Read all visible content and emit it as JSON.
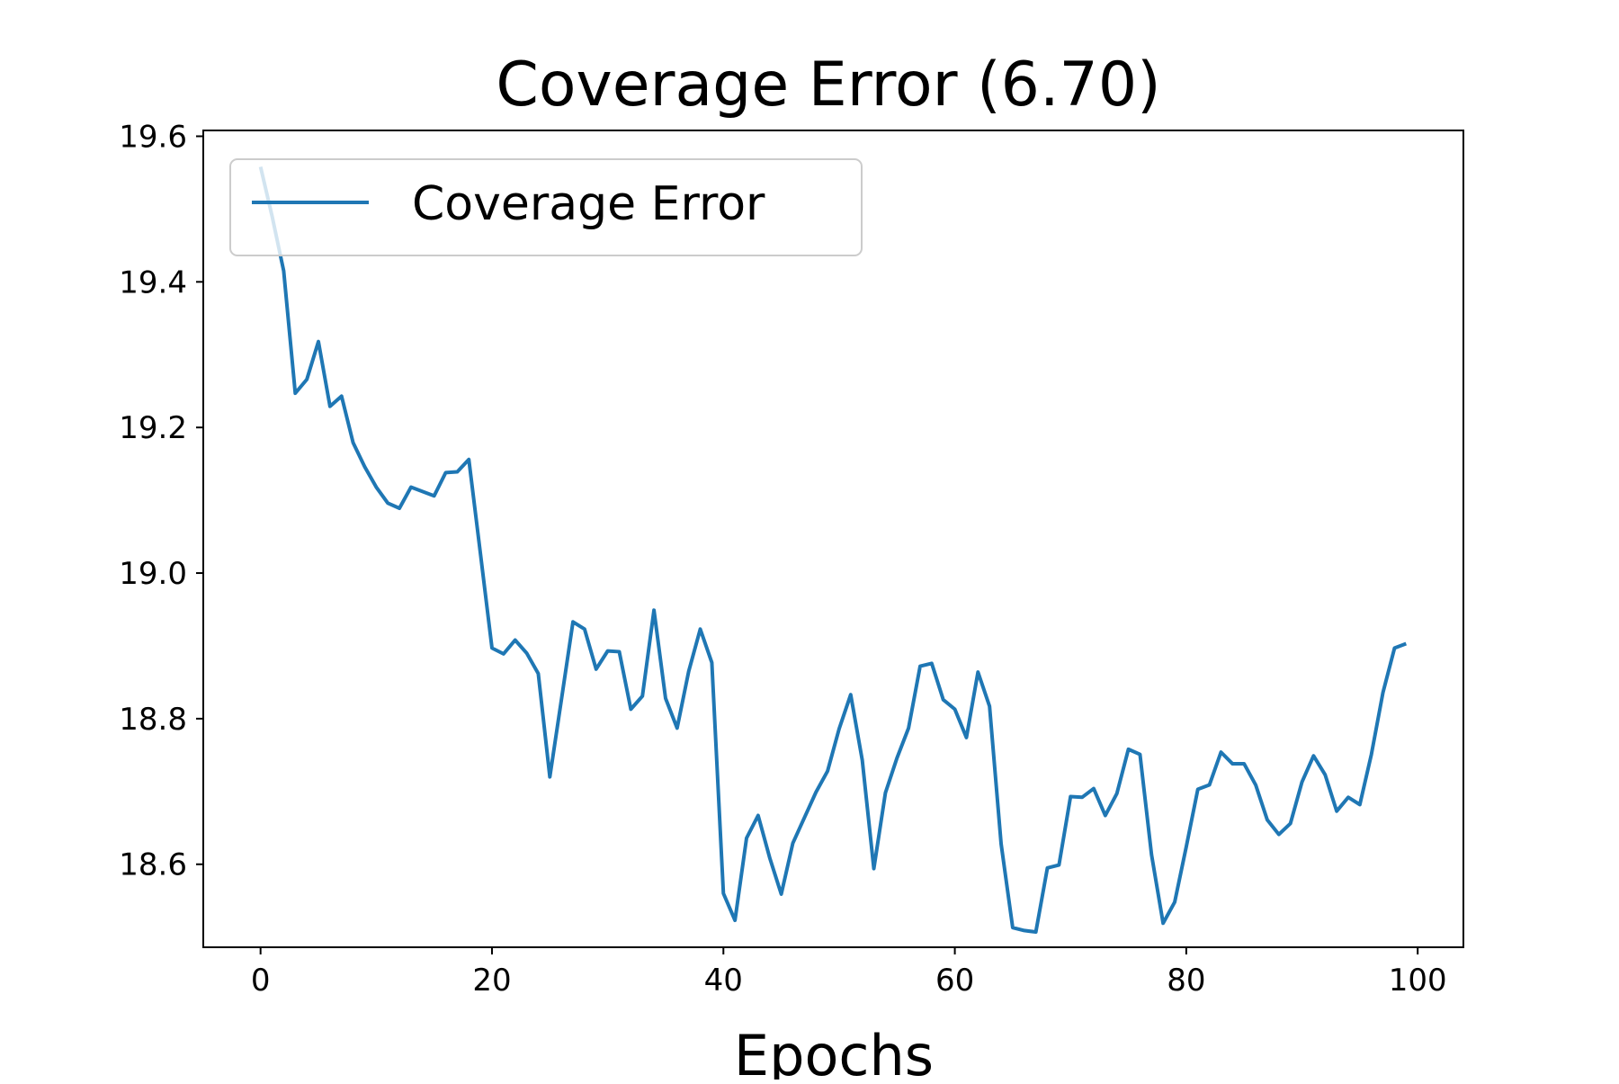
{
  "chart_data": {
    "type": "line",
    "title": "Coverage Error (6.70)",
    "xlabel": "Epochs",
    "ylabel": "",
    "xlim": [
      -4.95,
      103.95
    ],
    "ylim": [
      18.486,
      19.608
    ],
    "x_ticks": [
      0,
      20,
      40,
      60,
      80,
      100
    ],
    "x_tick_labels": [
      "0",
      "20",
      "40",
      "60",
      "80",
      "100"
    ],
    "y_ticks": [
      18.6,
      18.8,
      19.0,
      19.2,
      19.4,
      19.6
    ],
    "y_tick_labels": [
      "18.6",
      "18.8",
      "19.0",
      "19.2",
      "19.4",
      "19.6"
    ],
    "grid": false,
    "legend_position": "upper-left",
    "series": [
      {
        "name": "Coverage Error",
        "color": "#1f77b4",
        "x": [
          0,
          1,
          2,
          3,
          4,
          5,
          6,
          7,
          8,
          9,
          10,
          11,
          12,
          13,
          14,
          15,
          16,
          17,
          18,
          19,
          20,
          21,
          22,
          23,
          24,
          25,
          26,
          27,
          28,
          29,
          30,
          31,
          32,
          33,
          34,
          35,
          36,
          37,
          38,
          39,
          40,
          41,
          42,
          43,
          44,
          45,
          46,
          47,
          48,
          49,
          50,
          51,
          52,
          53,
          54,
          55,
          56,
          57,
          58,
          59,
          60,
          61,
          62,
          63,
          64,
          65,
          66,
          67,
          68,
          69,
          70,
          71,
          72,
          73,
          74,
          75,
          76,
          77,
          78,
          79,
          80,
          81,
          82,
          83,
          84,
          85,
          86,
          87,
          88,
          89,
          90,
          91,
          92,
          93,
          94,
          95,
          96,
          97,
          98,
          99
        ],
        "y": [
          19.558,
          19.49,
          19.415,
          19.247,
          19.266,
          19.318,
          19.229,
          19.243,
          19.179,
          19.146,
          19.118,
          19.096,
          19.089,
          19.118,
          19.112,
          19.106,
          19.138,
          19.139,
          19.156,
          19.027,
          18.897,
          18.889,
          18.908,
          18.89,
          18.862,
          18.72,
          18.826,
          18.933,
          18.923,
          18.868,
          18.893,
          18.892,
          18.813,
          18.831,
          18.949,
          18.828,
          18.787,
          18.865,
          18.923,
          18.877,
          18.56,
          18.523,
          18.636,
          18.667,
          18.609,
          18.559,
          18.629,
          18.664,
          18.699,
          18.728,
          18.786,
          18.833,
          18.743,
          18.594,
          18.698,
          18.746,
          18.787,
          18.872,
          18.876,
          18.826,
          18.813,
          18.774,
          18.864,
          18.817,
          18.628,
          18.513,
          18.509,
          18.507,
          18.595,
          18.599,
          18.693,
          18.692,
          18.704,
          18.667,
          18.697,
          18.758,
          18.751,
          18.613,
          18.519,
          18.548,
          18.624,
          18.703,
          18.709,
          18.754,
          18.738,
          18.738,
          18.709,
          18.661,
          18.641,
          18.656,
          18.713,
          18.749,
          18.723,
          18.673,
          18.692,
          18.682,
          18.751,
          18.836,
          18.897,
          18.903
        ]
      }
    ]
  }
}
